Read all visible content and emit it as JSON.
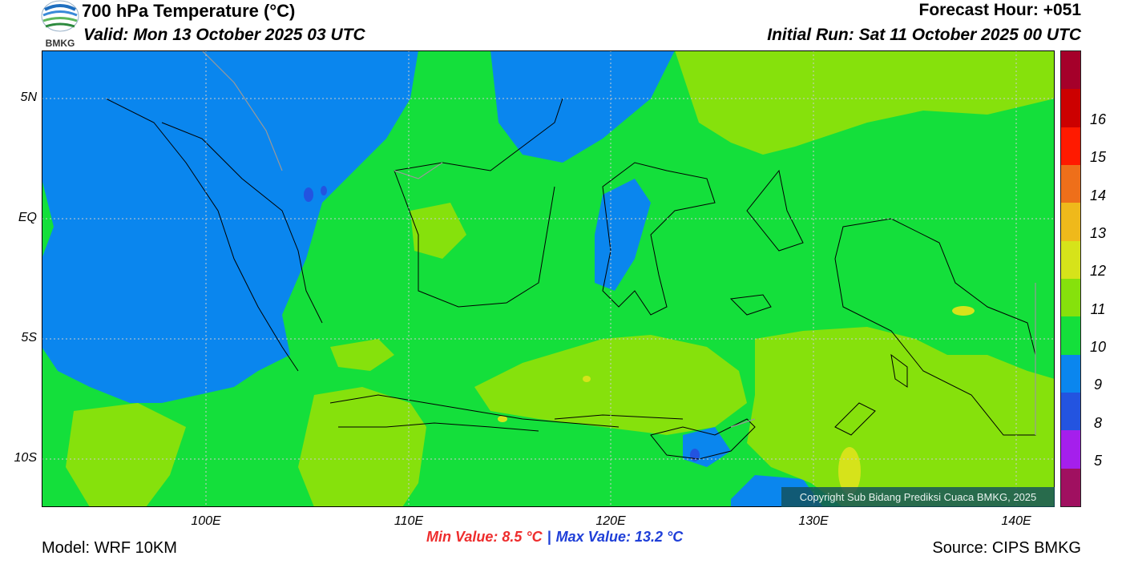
{
  "header": {
    "title": "700 hPa Temperature (°C)",
    "valid": "Valid: Mon 13 October 2025 03 UTC",
    "forecast_hour": "Forecast Hour: +051",
    "initial_run": "Initial Run: Sat 11 October 2025 00 UTC"
  },
  "logo": {
    "text": "BMKG",
    "icon": "bmkg-logo-icon"
  },
  "axes": {
    "lat_labels": [
      "5N",
      "EQ",
      "5S",
      "10S"
    ],
    "lon_labels": [
      "100E",
      "110E",
      "120E",
      "130E",
      "140E"
    ]
  },
  "colorbar": {
    "labels": [
      "16",
      "15",
      "14",
      "13",
      "12",
      "11",
      "10",
      "9",
      "8",
      "5"
    ],
    "colors": [
      "#a5002a",
      "#cc0000",
      "#ff1a00",
      "#ee6f1a",
      "#efb91b",
      "#d6e31a",
      "#86e10c",
      "#14df3b",
      "#0a86ee",
      "#2354e0",
      "#a51fec",
      "#a01060"
    ]
  },
  "map_colors": {
    "c9": "#0a86ee",
    "c10": "#14df3b",
    "c11": "#86e10c",
    "c12": "#d6e31a",
    "c8": "#2354e0"
  },
  "stats": {
    "min_label": "Min Value: 8.5 °C",
    "separator": "|",
    "max_label": "Max Value: 13.2 °C"
  },
  "footer": {
    "model": "Model: WRF 10KM",
    "source": "Source: CIPS BMKG",
    "copyright": "Copyright Sub Bidang Prediksi Cuaca BMKG, 2025"
  }
}
